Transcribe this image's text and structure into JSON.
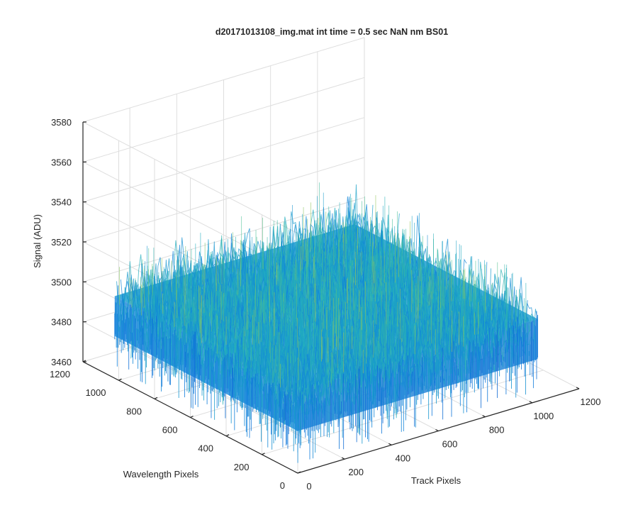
{
  "chart_data": {
    "type": "surface",
    "title": "d20171013108_img.mat int time = 0.5 sec  NaN nm BS01",
    "xlabel": "Track Pixels",
    "ylabel": "Wavelength Pixels",
    "zlabel": "Signal (ADU)",
    "xlim": [
      0,
      1200
    ],
    "ylim": [
      0,
      1200
    ],
    "zlim": [
      3460,
      3580
    ],
    "xticks": [
      "0",
      "200",
      "400",
      "600",
      "800",
      "1000",
      "1200"
    ],
    "yticks": [
      "0",
      "200",
      "400",
      "600",
      "800",
      "1000",
      "1200"
    ],
    "zticks": [
      "3460",
      "3480",
      "3500",
      "3520",
      "3540",
      "3560",
      "3580"
    ],
    "surface_extent": {
      "x": [
        1,
        1024
      ],
      "y": [
        1,
        1024
      ]
    },
    "mean_signal": 3497,
    "noise_range": [
      3465,
      3545
    ],
    "grid": true,
    "colormap": "parula"
  }
}
